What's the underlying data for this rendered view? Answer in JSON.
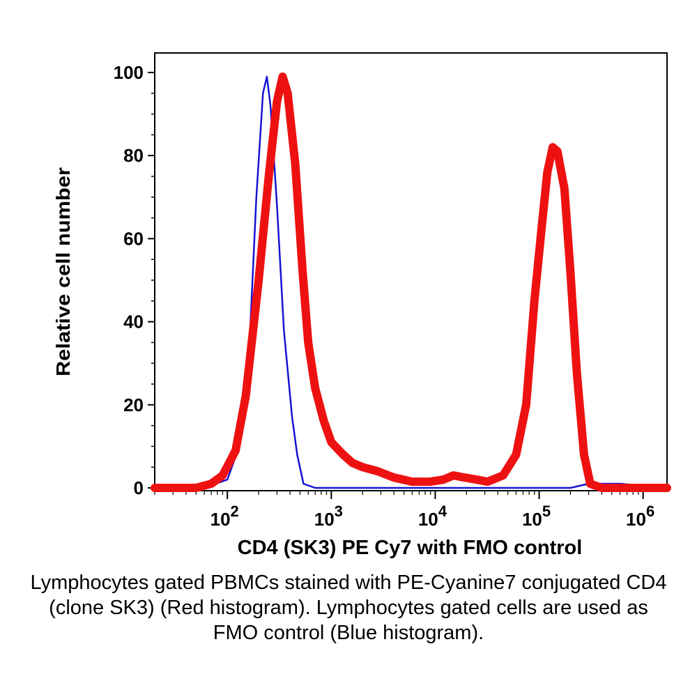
{
  "chart_data": {
    "type": "line",
    "title": "",
    "xlabel": "CD4 (SK3) PE Cy7 with FMO control",
    "ylabel": "Relative cell number",
    "x_scale": "log",
    "xlim": [
      20,
      1700000
    ],
    "ylim": [
      0,
      100
    ],
    "x_ticks": [
      {
        "value": 100,
        "base": "10",
        "exp": "2"
      },
      {
        "value": 1000,
        "base": "10",
        "exp": "3"
      },
      {
        "value": 10000,
        "base": "10",
        "exp": "4"
      },
      {
        "value": 100000,
        "base": "10",
        "exp": "5"
      },
      {
        "value": 1000000,
        "base": "10",
        "exp": "6"
      }
    ],
    "y_ticks": [
      0,
      20,
      40,
      60,
      80,
      100
    ],
    "grid": false,
    "series": [
      {
        "color": "#1414d2",
        "points": [
          [
            20,
            0
          ],
          [
            60,
            0
          ],
          [
            100,
            2
          ],
          [
            130,
            10
          ],
          [
            160,
            30
          ],
          [
            190,
            70
          ],
          [
            220,
            95
          ],
          [
            240,
            99
          ],
          [
            260,
            92
          ],
          [
            300,
            68
          ],
          [
            350,
            38
          ],
          [
            420,
            17
          ],
          [
            470,
            8
          ],
          [
            540,
            1
          ],
          [
            700,
            0
          ],
          [
            200000,
            0
          ],
          [
            300000,
            1
          ],
          [
            600000,
            1
          ],
          [
            1700000,
            0
          ]
        ]
      },
      {
        "color": "#ee1111",
        "points": [
          [
            20,
            0
          ],
          [
            50,
            0
          ],
          [
            70,
            1
          ],
          [
            90,
            3
          ],
          [
            120,
            9
          ],
          [
            150,
            22
          ],
          [
            200,
            50
          ],
          [
            250,
            75
          ],
          [
            300,
            93
          ],
          [
            340,
            99
          ],
          [
            380,
            95
          ],
          [
            450,
            78
          ],
          [
            530,
            52
          ],
          [
            600,
            35
          ],
          [
            700,
            24
          ],
          [
            850,
            16
          ],
          [
            1000,
            11
          ],
          [
            1300,
            8
          ],
          [
            1600,
            6
          ],
          [
            2000,
            5
          ],
          [
            2800,
            4
          ],
          [
            4000,
            2.5
          ],
          [
            6000,
            1.5
          ],
          [
            9000,
            1.5
          ],
          [
            12000,
            2
          ],
          [
            15000,
            3
          ],
          [
            19000,
            2.5
          ],
          [
            25000,
            2
          ],
          [
            32000,
            1.5
          ],
          [
            45000,
            3
          ],
          [
            60000,
            8
          ],
          [
            75000,
            20
          ],
          [
            90000,
            45
          ],
          [
            105000,
            62
          ],
          [
            120000,
            76
          ],
          [
            135000,
            82
          ],
          [
            150000,
            81
          ],
          [
            175000,
            72
          ],
          [
            200000,
            52
          ],
          [
            230000,
            28
          ],
          [
            270000,
            8
          ],
          [
            310000,
            1
          ],
          [
            400000,
            0
          ],
          [
            1700000,
            0
          ]
        ]
      }
    ]
  },
  "caption": "Lymphocytes gated PBMCs stained with PE-Cyanine7 conjugated CD4 (clone SK3) (Red histogram). Lymphocytes gated cells are used as FMO control (Blue histogram)."
}
